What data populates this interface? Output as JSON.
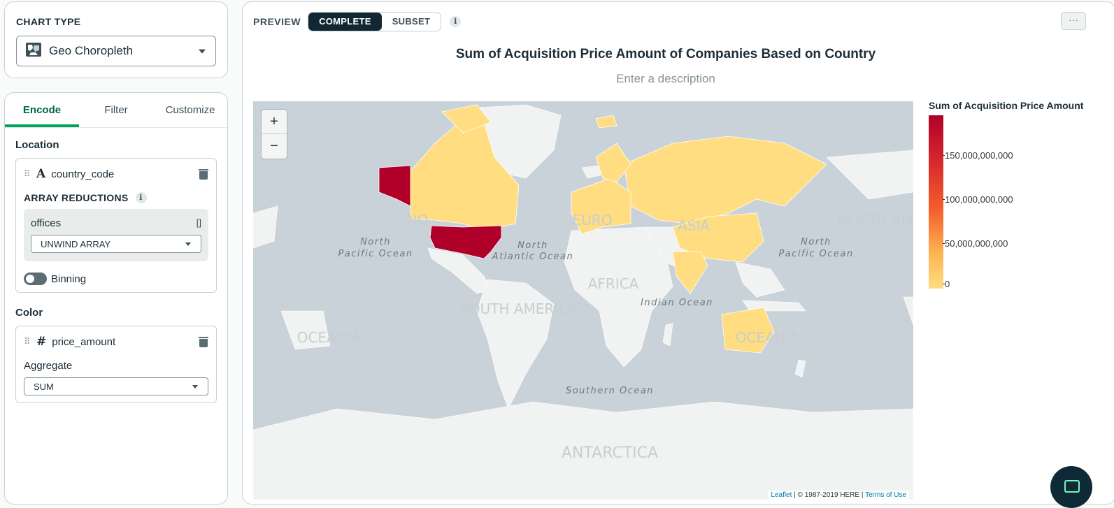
{
  "sidebar": {
    "chart_type": {
      "heading": "CHART TYPE",
      "selected": "Geo Choropleth",
      "icon": "geo-choropleth-icon"
    },
    "tabs": [
      {
        "label": "Encode",
        "active": true
      },
      {
        "label": "Filter",
        "active": false
      },
      {
        "label": "Customize",
        "active": false
      }
    ],
    "location": {
      "heading": "Location",
      "field": {
        "type_glyph": "A",
        "name": "country_code"
      },
      "array_reductions_label": "ARRAY REDUCTIONS",
      "array_field": "offices",
      "array_marker": "[]",
      "reduction": "UNWIND ARRAY",
      "binning_label": "Binning",
      "binning_on": false
    },
    "color": {
      "heading": "Color",
      "field": {
        "type_glyph": "#",
        "name": "price_amount"
      },
      "aggregate_label": "Aggregate",
      "aggregate": "SUM"
    }
  },
  "preview": {
    "label": "PREVIEW",
    "modes": [
      {
        "label": "COMPLETE",
        "active": true
      },
      {
        "label": "SUBSET",
        "active": false
      }
    ],
    "menu_glyph": "···"
  },
  "chart": {
    "title": "Sum of Acquisition Price Amount of Companies Based on Country",
    "description_placeholder": "Enter a description",
    "zoom_in": "+",
    "zoom_out": "−",
    "attribution": {
      "link1": "Leaflet",
      "text": " | © 1987-2019 HERE | ",
      "link2": "Terms of Use"
    },
    "map_labels": {
      "north_pacific_left": "North\nPacific Ocean",
      "north_pacific_right": "North\nPacific Ocean",
      "north_atlantic": "North\nAtlantic Ocean",
      "indian": "Indian Ocean",
      "southern": "Southern Ocean",
      "africa": "AFRICA",
      "south_america": "SOUTH AMERICA",
      "oceania_left": "OCEANIA",
      "oceania_right": "OCEANIA",
      "asia": "ASIA",
      "north_america": "NORTH AM",
      "antarctica": "ANTARCTICA",
      "north_left": "NO",
      "europe": "EURO"
    }
  },
  "chart_data": {
    "type": "choropleth",
    "title": "Sum of Acquisition Price Amount of Companies Based on Country",
    "legend_title": "Sum of Acquisition Price Amount",
    "legend_ticks": [
      "150,000,000,000",
      "100,000,000,000",
      "50,000,000,000",
      "0"
    ],
    "legend_tick_values": [
      150000000000,
      100000000000,
      50000000000,
      0
    ],
    "color_max": "#b0002a",
    "color_min": "#ffdd80",
    "regions": [
      {
        "name": "USA",
        "value_level": "max"
      },
      {
        "name": "Canada",
        "value_level": "low"
      },
      {
        "name": "Russia",
        "value_level": "low"
      },
      {
        "name": "China",
        "value_level": "low"
      },
      {
        "name": "India",
        "value_level": "low"
      },
      {
        "name": "Australia",
        "value_level": "low"
      },
      {
        "name": "Greenland",
        "value_level": "low"
      },
      {
        "name": "Western Europe",
        "value_level": "low"
      }
    ]
  },
  "colors": {
    "accent": "#00a35c",
    "dark": "#112733",
    "max": "#b0002a",
    "low": "#ffdd80"
  }
}
